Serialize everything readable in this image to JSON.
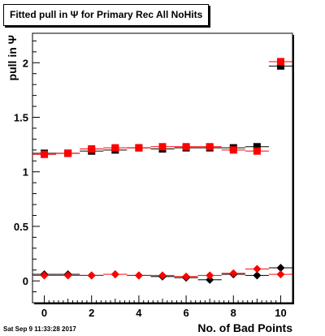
{
  "chart_data": {
    "type": "scatter",
    "title": "Fitted pull in Ψ  for Primary Rec All NoHits",
    "xlabel": "No. of Bad Points",
    "ylabel": "pull in Ψ",
    "xlim": [
      -0.5,
      10.5
    ],
    "ylim": [
      -0.2,
      2.27
    ],
    "x_ticks": [
      "0",
      "2",
      "4",
      "6",
      "8",
      "10"
    ],
    "y_ticks": [
      "0",
      "0.5",
      "1",
      "1.5",
      "2"
    ],
    "grid": false,
    "legend": false,
    "series": [
      {
        "color": "#000000",
        "marker": "square",
        "x": [
          0,
          1,
          2,
          3,
          4,
          5,
          6,
          7,
          8,
          9,
          10
        ],
        "y": [
          1.17,
          1.17,
          1.19,
          1.2,
          1.22,
          1.21,
          1.22,
          1.22,
          1.22,
          1.23,
          1.97
        ]
      },
      {
        "color": "#ff0000",
        "marker": "square",
        "x": [
          0,
          1,
          2,
          3,
          4,
          5,
          6,
          7,
          8,
          9,
          10
        ],
        "y": [
          1.16,
          1.17,
          1.21,
          1.22,
          1.22,
          1.23,
          1.23,
          1.23,
          1.2,
          1.19,
          2.01
        ]
      },
      {
        "color": "#000000",
        "marker": "diamond",
        "x": [
          0,
          1,
          2,
          3,
          4,
          5,
          6,
          7,
          8,
          9,
          10
        ],
        "y": [
          0.06,
          0.06,
          0.05,
          0.06,
          0.05,
          0.04,
          0.03,
          0.01,
          0.06,
          0.05,
          0.12
        ]
      },
      {
        "color": "#ff0000",
        "marker": "diamond",
        "x": [
          0,
          1,
          2,
          3,
          4,
          5,
          6,
          7,
          8,
          9,
          10
        ],
        "y": [
          0.05,
          0.05,
          0.05,
          0.06,
          0.05,
          0.05,
          0.04,
          0.05,
          0.07,
          0.11,
          0.06
        ]
      }
    ]
  },
  "footer": {
    "timestamp": "Sat Sep  9 11:33:28 2017"
  }
}
